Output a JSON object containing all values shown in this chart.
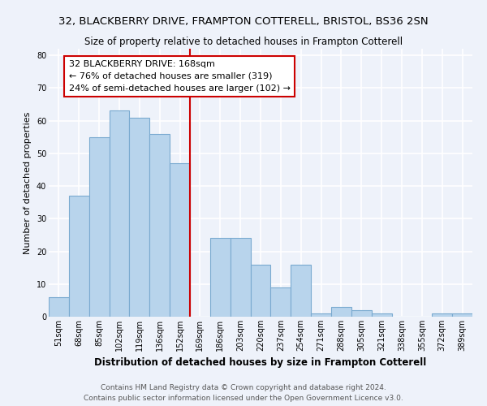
{
  "title": "32, BLACKBERRY DRIVE, FRAMPTON COTTERELL, BRISTOL, BS36 2SN",
  "subtitle": "Size of property relative to detached houses in Frampton Cotterell",
  "xlabel": "Distribution of detached houses by size in Frampton Cotterell",
  "ylabel": "Number of detached properties",
  "bin_labels": [
    "51sqm",
    "68sqm",
    "85sqm",
    "102sqm",
    "119sqm",
    "136sqm",
    "152sqm",
    "169sqm",
    "186sqm",
    "203sqm",
    "220sqm",
    "237sqm",
    "254sqm",
    "271sqm",
    "288sqm",
    "305sqm",
    "321sqm",
    "338sqm",
    "355sqm",
    "372sqm",
    "389sqm"
  ],
  "bar_values": [
    6,
    37,
    55,
    63,
    61,
    56,
    47,
    0,
    24,
    24,
    16,
    9,
    16,
    1,
    3,
    2,
    1,
    0,
    0,
    1,
    1
  ],
  "bar_color": "#b8d4ec",
  "bar_edge_color": "#7aaad0",
  "vline_color": "#cc0000",
  "annotation_line1": "32 BLACKBERRY DRIVE: 168sqm",
  "annotation_line2": "← 76% of detached houses are smaller (319)",
  "annotation_line3": "24% of semi-detached houses are larger (102) →",
  "annotation_box_color": "#ffffff",
  "annotation_box_edge_color": "#cc0000",
  "ylim": [
    0,
    82
  ],
  "yticks": [
    0,
    10,
    20,
    30,
    40,
    50,
    60,
    70,
    80
  ],
  "footer_line1": "Contains HM Land Registry data © Crown copyright and database right 2024.",
  "footer_line2": "Contains public sector information licensed under the Open Government Licence v3.0.",
  "background_color": "#eef2fa",
  "grid_color": "#ffffff",
  "title_fontsize": 9.5,
  "subtitle_fontsize": 8.5,
  "xlabel_fontsize": 8.5,
  "ylabel_fontsize": 8,
  "tick_fontsize": 7,
  "annotation_fontsize": 8,
  "footer_fontsize": 6.5
}
